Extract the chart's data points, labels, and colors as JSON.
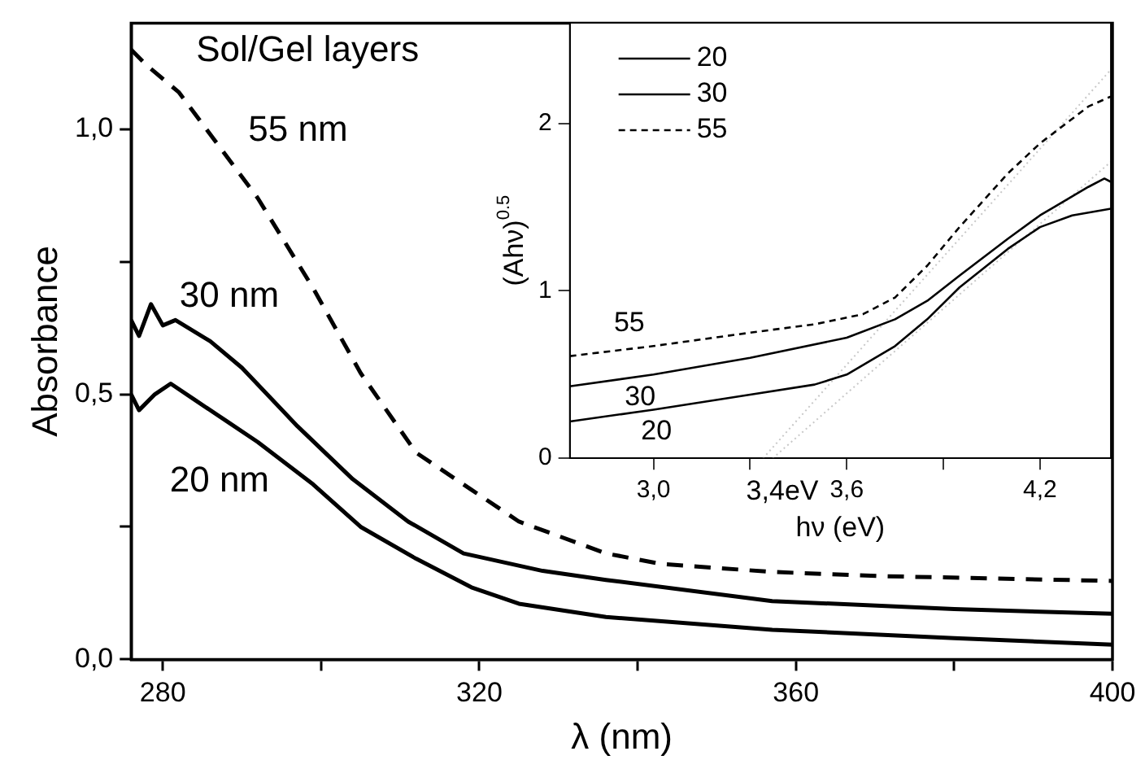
{
  "chart_data": [
    {
      "type": "line",
      "xlabel": "λ (nm)",
      "ylabel": "Absorbance",
      "xlim": [
        276,
        400
      ],
      "xticks": [
        280,
        {
          "value": 300,
          "label": null
        },
        320,
        {
          "value": 340,
          "label": null
        },
        360,
        {
          "value": 380,
          "label": null
        },
        400
      ],
      "ylim": [
        0,
        1.2
      ],
      "yticks": [
        {
          "value": 0,
          "label": "0,0"
        },
        {
          "value": 0.25,
          "label": null
        },
        {
          "value": 0.5,
          "label": "0,5"
        },
        {
          "value": 0.75,
          "label": null
        },
        {
          "value": 1,
          "label": "1,0"
        }
      ],
      "marker": "none",
      "series": [
        {
          "name": "55 nm",
          "color": "#000000",
          "line_style": "dashed",
          "x": [
            276,
            278,
            282,
            285,
            292,
            299,
            305,
            312,
            319,
            325,
            336,
            343,
            357,
            371,
            400
          ],
          "values": [
            1.15,
            1.12,
            1.07,
            1.01,
            0.87,
            0.7,
            0.54,
            0.39,
            0.32,
            0.26,
            0.2,
            0.18,
            0.165,
            0.157,
            0.148
          ]
        },
        {
          "name": "30 nm",
          "color": "#000000",
          "line_style": "solid",
          "x": [
            276,
            277,
            278.5,
            280,
            281.6,
            286,
            290,
            297,
            304,
            311,
            318,
            328,
            336,
            357,
            380,
            400
          ],
          "values": [
            0.64,
            0.61,
            0.67,
            0.63,
            0.64,
            0.6,
            0.55,
            0.44,
            0.34,
            0.26,
            0.2,
            0.167,
            0.15,
            0.11,
            0.095,
            0.086
          ]
        },
        {
          "name": "20 nm",
          "color": "#000000",
          "line_style": "solid",
          "x": [
            276,
            277,
            279,
            281,
            284,
            288,
            292,
            299,
            305,
            312,
            319,
            325,
            336,
            357,
            380,
            400
          ],
          "values": [
            0.5,
            0.47,
            0.5,
            0.52,
            0.49,
            0.45,
            0.41,
            0.33,
            0.25,
            0.19,
            0.136,
            0.105,
            0.08,
            0.056,
            0.04,
            0.028
          ]
        }
      ],
      "annotations": [
        "Sol/Gel layers"
      ]
    },
    {
      "type": "line",
      "xlabel": "hν (eV)",
      "ylabel": "(Ahν)$^{0.5}$",
      "xlim": [
        2.74,
        4.42
      ],
      "xticks": [
        {
          "value": 3.0,
          "label": "3,0"
        },
        {
          "value": 3.3,
          "label": null
        },
        {
          "value": 3.6,
          "label": "3,6"
        },
        {
          "value": 3.9,
          "label": null
        },
        {
          "value": 4.2,
          "label": "4,2"
        }
      ],
      "ylim": [
        0,
        2.6
      ],
      "yticks": [
        0,
        1,
        2
      ],
      "marker": "none",
      "legend": "top left",
      "series": [
        {
          "name": "20",
          "color": "#000000",
          "line_style": "solid",
          "x": [
            2.74,
            3.0,
            3.3,
            3.5,
            3.6,
            3.75,
            3.85,
            3.95,
            4.1,
            4.2,
            4.3,
            4.42
          ],
          "values": [
            0.22,
            0.29,
            0.38,
            0.44,
            0.5,
            0.67,
            0.83,
            1.02,
            1.25,
            1.38,
            1.45,
            1.49
          ]
        },
        {
          "name": "30",
          "color": "#000000",
          "line_style": "solid",
          "x": [
            2.74,
            3.0,
            3.3,
            3.6,
            3.75,
            3.85,
            3.95,
            4.1,
            4.2,
            4.35,
            4.4,
            4.42
          ],
          "values": [
            0.43,
            0.5,
            0.6,
            0.72,
            0.83,
            0.94,
            1.09,
            1.31,
            1.45,
            1.62,
            1.67,
            1.65
          ]
        },
        {
          "name": "55",
          "color": "#000000",
          "line_style": "dashed",
          "x": [
            2.74,
            3.0,
            3.3,
            3.5,
            3.65,
            3.75,
            3.85,
            3.95,
            4.1,
            4.2,
            4.35,
            4.42
          ],
          "values": [
            0.61,
            0.67,
            0.75,
            0.8,
            0.86,
            0.96,
            1.15,
            1.38,
            1.7,
            1.88,
            2.1,
            2.16
          ]
        },
        {
          "color": "#c8c8c8",
          "line_style": "dotted",
          "x": [
            3.34,
            4.42
          ],
          "values": [
            0,
            2.32
          ]
        },
        {
          "color": "#c8c8c8",
          "line_style": "dotted",
          "x": [
            3.37,
            4.42
          ],
          "values": [
            0,
            1.77
          ]
        }
      ],
      "annotations": [
        {
          "text": "3,4eV",
          "x": 3.4,
          "y": 0
        }
      ]
    }
  ]
}
